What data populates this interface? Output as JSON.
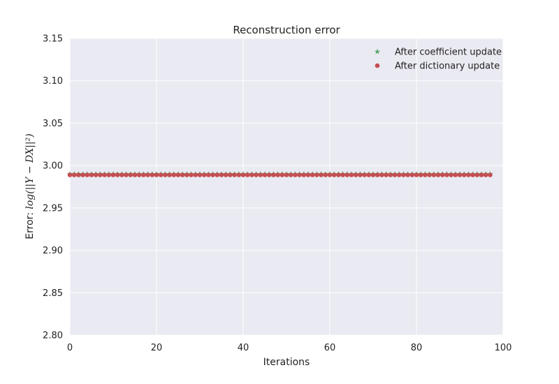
{
  "chart_data": {
    "type": "scatter",
    "title": "Reconstruction error",
    "xlabel": "Iterations",
    "ylabel_prefix": "Error: ",
    "ylabel_math": "log(||Y − DX||²)",
    "xlim": [
      0,
      100
    ],
    "ylim": [
      2.8,
      3.15
    ],
    "xticks": [
      0,
      20,
      40,
      60,
      80,
      100
    ],
    "yticks": [
      2.8,
      2.85,
      2.9,
      2.95,
      3.0,
      3.05,
      3.1,
      3.15
    ],
    "grid": true,
    "legend_position": "top-right",
    "background": "#eaeaf2",
    "series": [
      {
        "name": "After coefficient update",
        "marker": "star",
        "color": "#55a868",
        "x_start": 0,
        "x_end": 97,
        "x_step": 1,
        "y_constant": 2.99
      },
      {
        "name": "After dictionary update",
        "marker": "circle",
        "color": "#c44e52",
        "x_start": 0,
        "x_end": 97,
        "x_step": 1,
        "y_constant": 2.989
      }
    ]
  }
}
